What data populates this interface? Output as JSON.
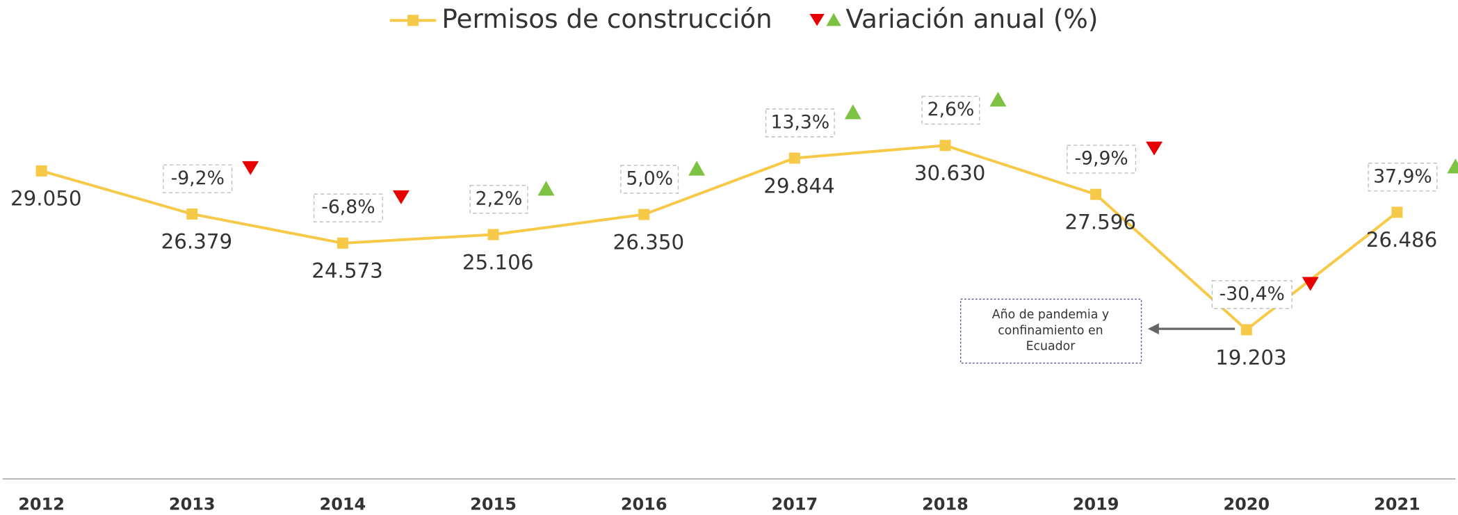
{
  "chart_data": {
    "type": "line",
    "categories": [
      "2012",
      "2013",
      "2014",
      "2015",
      "2016",
      "2017",
      "2018",
      "2019",
      "2020",
      "2021"
    ],
    "series": [
      {
        "name": "Permisos de construcción",
        "color": "#f7c948",
        "values": [
          29050,
          26379,
          24573,
          25106,
          26350,
          29844,
          30630,
          27596,
          19203,
          26486
        ],
        "value_labels": [
          "29.050",
          "26.379",
          "24.573",
          "25.106",
          "26.350",
          "29.844",
          "30.630",
          "27.596",
          "19.203",
          "26.486"
        ]
      },
      {
        "name": "Variación anual (%)",
        "color_up": "#7dc242",
        "color_down": "#e60000",
        "values": [
          null,
          -9.2,
          -6.8,
          2.2,
          5.0,
          13.3,
          2.6,
          -9.9,
          -30.4,
          37.9
        ],
        "value_labels": [
          null,
          "-9,2%",
          "-6,8%",
          "2,2%",
          "5,0%",
          "13,3%",
          "2,6%",
          "-9,9%",
          "-30,4%",
          "37,9%"
        ]
      }
    ],
    "annotation": [
      "Año de pandemia  y",
      "confinamiento en",
      "Ecuador"
    ]
  }
}
